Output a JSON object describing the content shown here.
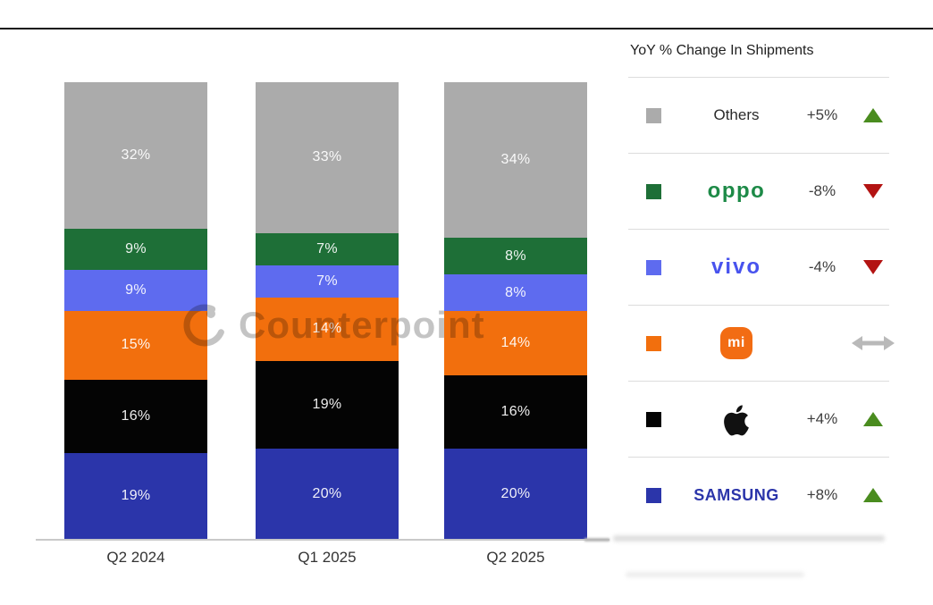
{
  "chart_data": {
    "type": "bar",
    "subtype": "stacked-100",
    "categories": [
      "Q2 2024",
      "Q1 2025",
      "Q2 2025"
    ],
    "series": [
      {
        "name": "Samsung",
        "color": "#2b35aa",
        "values": [
          19,
          20,
          20
        ]
      },
      {
        "name": "Apple",
        "color": "#040404",
        "values": [
          16,
          19,
          16
        ]
      },
      {
        "name": "Xiaomi",
        "color": "#f26f0d",
        "values": [
          15,
          14,
          14
        ]
      },
      {
        "name": "vivo",
        "color": "#5e6bef",
        "values": [
          9,
          7,
          8
        ]
      },
      {
        "name": "OPPO",
        "color": "#1e6f37",
        "values": [
          9,
          7,
          8
        ]
      },
      {
        "name": "Others",
        "color": "#ababab",
        "values": [
          32,
          33,
          34
        ]
      }
    ],
    "stack_order": "first series at bottom",
    "value_suffix": "%",
    "ylim": [
      0,
      100
    ],
    "grid": false,
    "legend_position": "right"
  },
  "legend": {
    "title": "YoY % Change In Shipments",
    "rows": [
      {
        "brand": "Others",
        "logo": "text",
        "label": "Others",
        "logo_color": "#2a2a2a",
        "swatch": "#ababab",
        "change": "+5%",
        "direction": "up"
      },
      {
        "brand": "OPPO",
        "logo": "wordmark-oppo",
        "label": "oppo",
        "logo_color": "#1d8a47",
        "swatch": "#1e6f37",
        "change": "-8%",
        "direction": "down"
      },
      {
        "brand": "vivo",
        "logo": "wordmark-vivo",
        "label": "vivo",
        "logo_color": "#4853ee",
        "swatch": "#5e6bef",
        "change": "-4%",
        "direction": "down"
      },
      {
        "brand": "Xiaomi",
        "logo": "mi-badge",
        "label": "mi",
        "logo_color": "#f26c13",
        "swatch": "#f26f0d",
        "change": "",
        "direction": "flat"
      },
      {
        "brand": "Apple",
        "logo": "apple-icon",
        "label": "",
        "logo_color": "#111111",
        "swatch": "#040404",
        "change": "+4%",
        "direction": "up"
      },
      {
        "brand": "Samsung",
        "logo": "wordmark-samsung",
        "label": "SAMSUNG",
        "logo_color": "#2b35aa",
        "swatch": "#2b35aa",
        "change": "+8%",
        "direction": "up"
      }
    ],
    "direction_colors": {
      "up": "#4a8c1f",
      "down": "#b31312",
      "flat": "#b9b9b9"
    }
  },
  "watermark": {
    "text": "Counterpoint"
  }
}
